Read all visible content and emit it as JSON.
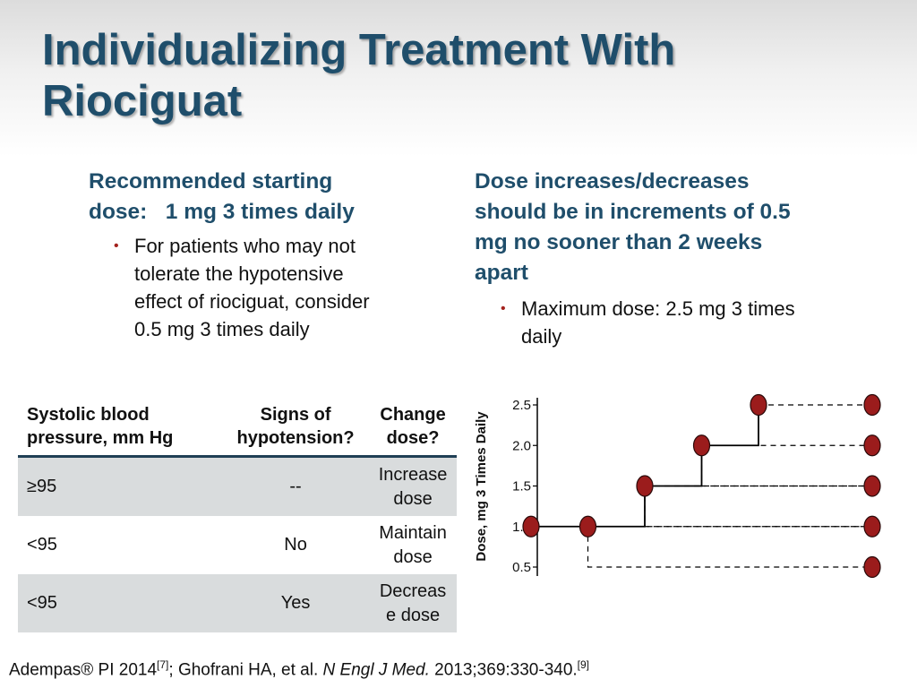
{
  "slide": {
    "title_line1": "Individualizing Treatment With",
    "title_line2": "Riociguat"
  },
  "left": {
    "heading_line1": "Recommended starting",
    "heading_line2": "dose:   1 mg 3 times daily",
    "bullet_line1": "For patients who may not",
    "bullet_line2": "tolerate the hypotensive",
    "bullet_line3": "effect of riociguat, consider",
    "bullet_line4": "0.5 mg 3 times daily"
  },
  "right": {
    "heading_line1": "Dose increases/decreases",
    "heading_line2": "should be in increments of 0.5",
    "heading_line3": "mg no sooner than 2 weeks",
    "heading_line4": "apart",
    "bullet_line1": "Maximum dose: 2.5 mg 3 times",
    "bullet_line2": "daily"
  },
  "table": {
    "headers": [
      [
        "Systolic blood",
        "pressure, mm Hg"
      ],
      [
        "Signs of",
        "hypotension?"
      ],
      [
        "Change",
        "dose?"
      ]
    ],
    "rows": [
      {
        "bp": "≥95",
        "hypotension": "--",
        "change_line1": "Increase",
        "change_line2": "dose"
      },
      {
        "bp": "<95",
        "hypotension": "No",
        "change_line1": "Maintain",
        "change_line2": "dose"
      },
      {
        "bp": "<95",
        "hypotension": "Yes",
        "change_line1": "Decreas",
        "change_line2": "e dose"
      }
    ]
  },
  "footer": {
    "ref1": "Adempas® PI 2014",
    "sup1": "[7]",
    "sep": "; Ghofrani HA, et al. ",
    "journal": "N Engl J Med.",
    "ref2": " 2013;369:330-340.",
    "sup2": "[9]"
  },
  "colors": {
    "title": "#1f4e6b",
    "bullet": "#a3221d",
    "marker_fill": "#9b1c1c",
    "table_shade": "#d9dcdd"
  },
  "chart_data": {
    "type": "line",
    "ylabel": "Dose, mg 3 Times Daily",
    "yticks": [
      "0.5",
      "1.0",
      "1.5",
      "2.0",
      "2.5"
    ],
    "ylim": [
      0.5,
      2.5
    ],
    "step_x": [
      0,
      1,
      2,
      3,
      4
    ],
    "step_y": [
      1.0,
      1.0,
      1.5,
      2.0,
      2.5
    ],
    "end_x": 6,
    "end_y": [
      0.5,
      1.0,
      1.5,
      2.0,
      2.5
    ],
    "dashed_branches": [
      {
        "from_x": 1,
        "from_y": 1.0,
        "to_y": 0.5
      },
      {
        "from_x": 1,
        "from_y": 1.0,
        "to_y": 1.0
      },
      {
        "from_x": 2,
        "from_y": 1.5,
        "to_y": 1.0
      },
      {
        "from_x": 2,
        "from_y": 1.5,
        "to_y": 1.5
      },
      {
        "from_x": 3,
        "from_y": 2.0,
        "to_y": 1.5
      },
      {
        "from_x": 3,
        "from_y": 2.0,
        "to_y": 2.0
      },
      {
        "from_x": 4,
        "from_y": 2.5,
        "to_y": 2.5
      }
    ]
  }
}
